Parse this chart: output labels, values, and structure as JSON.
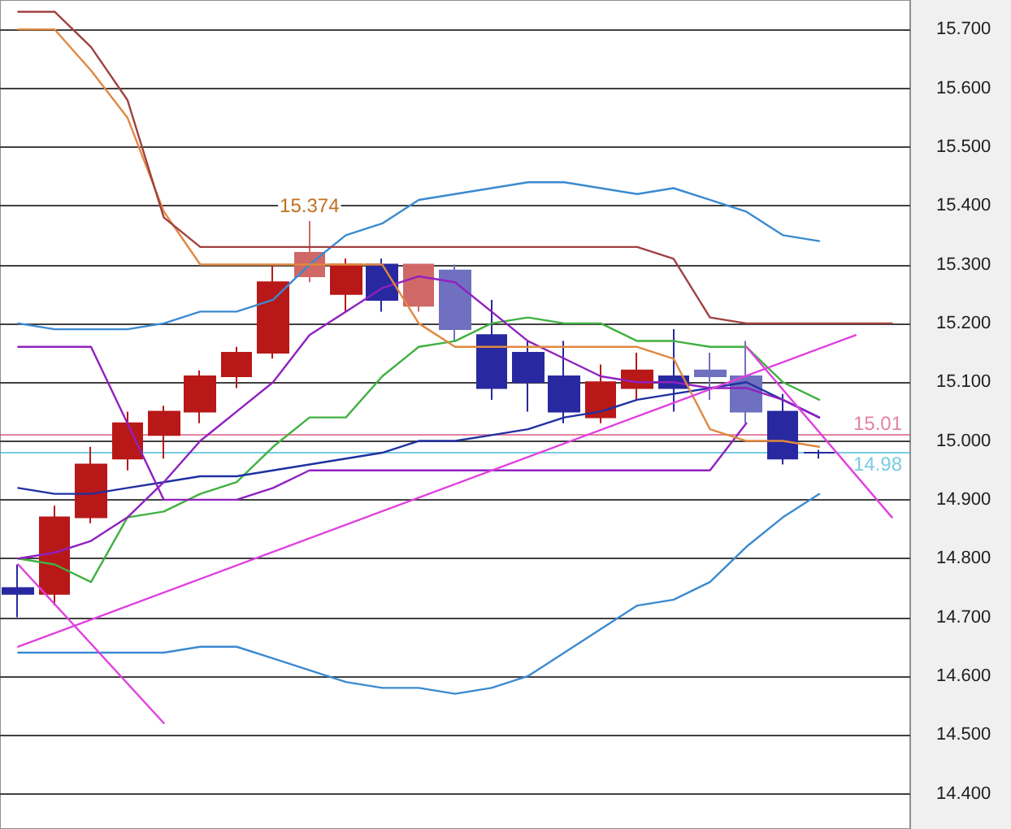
{
  "chart_data": {
    "type": "candlestick",
    "categories": [
      null,
      null,
      null,
      null,
      null,
      null,
      null,
      null,
      null,
      null,
      null,
      null,
      null,
      null,
      null,
      null,
      null,
      null,
      null,
      null,
      null,
      null,
      null,
      null,
      null
    ],
    "ohlc": [
      [
        14.75,
        14.79,
        14.7,
        14.74
      ],
      [
        14.74,
        14.89,
        14.72,
        14.87
      ],
      [
        14.87,
        14.99,
        14.86,
        14.96
      ],
      [
        14.97,
        15.05,
        14.95,
        15.03
      ],
      [
        15.01,
        15.06,
        14.97,
        15.05
      ],
      [
        15.05,
        15.12,
        15.03,
        15.11
      ],
      [
        15.11,
        15.16,
        15.09,
        15.15
      ],
      [
        15.15,
        15.3,
        15.14,
        15.27
      ],
      [
        15.28,
        15.374,
        15.27,
        15.32
      ],
      [
        15.25,
        15.31,
        15.22,
        15.3
      ],
      [
        15.3,
        15.31,
        15.22,
        15.24
      ],
      [
        15.23,
        15.3,
        15.22,
        15.3
      ],
      [
        15.29,
        15.3,
        15.17,
        15.19
      ],
      [
        15.18,
        15.24,
        15.07,
        15.09
      ],
      [
        15.15,
        15.17,
        15.05,
        15.1
      ],
      [
        15.11,
        15.17,
        15.03,
        15.05
      ],
      [
        15.04,
        15.13,
        15.03,
        15.1
      ],
      [
        15.09,
        15.15,
        15.07,
        15.12
      ],
      [
        15.11,
        15.19,
        15.05,
        15.09
      ],
      [
        15.12,
        15.15,
        15.07,
        15.11
      ],
      [
        15.11,
        15.17,
        15.03,
        15.05
      ],
      [
        15.05,
        15.08,
        14.96,
        14.97
      ],
      [
        14.98,
        14.985,
        14.97,
        14.98
      ],
      null,
      null
    ],
    "colors": [
      "#2828a0",
      "#b81818",
      "#b81818",
      "#b81818",
      "#b81818",
      "#b81818",
      "#b81818",
      "#b81818",
      "#d06868",
      "#b81818",
      "#2828a0",
      "#d06868",
      "#7070c0",
      "#2828a0",
      "#2828a0",
      "#2828a0",
      "#b81818",
      "#b81818",
      "#2828a0",
      "#7070c0",
      "#7070c0",
      "#2828a0",
      "#2828a0",
      null,
      null
    ],
    "series": [
      {
        "type": "line",
        "color": "#3a8ad0",
        "values": [
          15.2,
          15.19,
          15.19,
          15.19,
          15.2,
          15.22,
          15.22,
          15.24,
          15.3,
          15.35,
          15.37,
          15.41,
          15.42,
          15.43,
          15.44,
          15.44,
          15.43,
          15.42,
          15.43,
          15.41,
          15.39,
          15.35,
          15.34,
          null,
          null
        ]
      },
      {
        "type": "line",
        "color": "#3a8ad0",
        "values": [
          14.64,
          14.64,
          14.64,
          14.64,
          14.64,
          14.65,
          14.65,
          14.63,
          14.61,
          14.59,
          14.58,
          14.58,
          14.57,
          14.58,
          14.6,
          14.64,
          14.68,
          14.72,
          14.73,
          14.76,
          14.82,
          14.87,
          14.91,
          null,
          null
        ]
      },
      {
        "type": "line",
        "color": "#40b040",
        "values": [
          14.8,
          14.79,
          14.76,
          14.87,
          14.88,
          14.91,
          14.93,
          14.99,
          15.04,
          15.04,
          15.11,
          15.16,
          15.17,
          15.2,
          15.21,
          15.2,
          15.2,
          15.17,
          15.17,
          15.16,
          15.16,
          15.1,
          15.07,
          null,
          null
        ]
      },
      {
        "type": "line",
        "color": "#2030a0",
        "values": [
          14.92,
          14.91,
          14.91,
          14.92,
          14.93,
          14.94,
          14.94,
          14.95,
          14.96,
          14.97,
          14.98,
          15.0,
          15.0,
          15.01,
          15.02,
          15.04,
          15.05,
          15.07,
          15.08,
          15.09,
          15.1,
          15.07,
          15.04,
          null,
          null
        ]
      },
      {
        "type": "line",
        "color": "#9020c0",
        "values": [
          14.8,
          14.81,
          14.83,
          14.87,
          14.93,
          15.0,
          15.05,
          15.1,
          15.18,
          15.22,
          15.26,
          15.28,
          15.27,
          15.22,
          15.17,
          15.14,
          15.11,
          15.1,
          15.1,
          15.09,
          15.09,
          15.07,
          15.04,
          null,
          null
        ]
      },
      {
        "type": "line",
        "color": "#9020c0",
        "values": [
          15.16,
          15.16,
          15.16,
          15.03,
          14.9,
          14.9,
          14.9,
          14.92,
          14.95,
          14.95,
          14.95,
          14.95,
          14.95,
          14.95,
          14.95,
          14.95,
          14.95,
          14.95,
          14.95,
          14.95,
          15.03,
          null,
          null,
          null,
          null
        ]
      },
      {
        "type": "line",
        "color": "#e08840",
        "values": [
          15.7,
          15.7,
          15.63,
          15.55,
          15.39,
          15.3,
          15.3,
          15.3,
          15.3,
          15.3,
          15.3,
          15.2,
          15.16,
          15.16,
          15.16,
          15.16,
          15.16,
          15.16,
          15.14,
          15.02,
          15.0,
          15.0,
          14.99,
          null,
          null
        ]
      },
      {
        "type": "line",
        "color": "#a04040",
        "values": [
          15.73,
          15.73,
          15.67,
          15.58,
          15.38,
          15.33,
          15.33,
          15.33,
          15.33,
          15.33,
          15.33,
          15.33,
          15.33,
          15.33,
          15.33,
          15.33,
          15.33,
          15.33,
          15.31,
          15.21,
          15.2,
          15.2,
          15.2,
          15.2,
          15.2
        ]
      },
      {
        "type": "line",
        "color": "#e040e0",
        "values": [
          14.65,
          null,
          null,
          null,
          null,
          null,
          null,
          null,
          null,
          null,
          null,
          null,
          null,
          null,
          null,
          null,
          null,
          null,
          null,
          null,
          null,
          null,
          null,
          15.18,
          null
        ]
      },
      {
        "type": "line",
        "color": "#e040e0",
        "values": [
          14.79,
          null,
          null,
          null,
          14.52,
          null,
          null,
          null,
          null,
          null,
          null,
          null,
          null,
          null,
          null,
          null,
          null,
          null,
          null,
          null,
          null,
          null,
          null,
          null,
          null
        ]
      },
      {
        "type": "line",
        "color": "#e040e0",
        "values": [
          null,
          null,
          null,
          null,
          null,
          null,
          null,
          null,
          null,
          null,
          null,
          null,
          null,
          null,
          null,
          null,
          null,
          null,
          null,
          null,
          15.16,
          null,
          null,
          null,
          14.87
        ]
      }
    ],
    "ylim": [
      14.34,
      15.75
    ],
    "yticks": [
      {
        "value": 14.4,
        "label": "14.400"
      },
      {
        "value": 14.5,
        "label": "14.500"
      },
      {
        "value": 14.6,
        "label": "14.600"
      },
      {
        "value": 14.7,
        "label": "14.700"
      },
      {
        "value": 14.8,
        "label": "14.800"
      },
      {
        "value": 14.9,
        "label": "14.900"
      },
      {
        "value": 15.0,
        "label": "15.000"
      },
      {
        "value": 15.1,
        "label": "15.100"
      },
      {
        "value": 15.2,
        "label": "15.200"
      },
      {
        "value": 15.3,
        "label": "15.300"
      },
      {
        "value": 15.4,
        "label": "15.400"
      },
      {
        "value": 15.5,
        "label": "15.500"
      },
      {
        "value": 15.6,
        "label": "15.600"
      },
      {
        "value": 15.7,
        "label": "15.700"
      }
    ],
    "grid": "y",
    "tick_labels": "y",
    "marker": "none",
    "line_style": "solid",
    "ref_lines": [
      {
        "axis": "y",
        "value": 15.01,
        "label": "15.01",
        "color": "#d03060"
      },
      {
        "axis": "y",
        "value": 14.98,
        "label": "14.98",
        "color": "#20a8d0"
      }
    ],
    "annotations": [
      "15.374"
    ]
  }
}
